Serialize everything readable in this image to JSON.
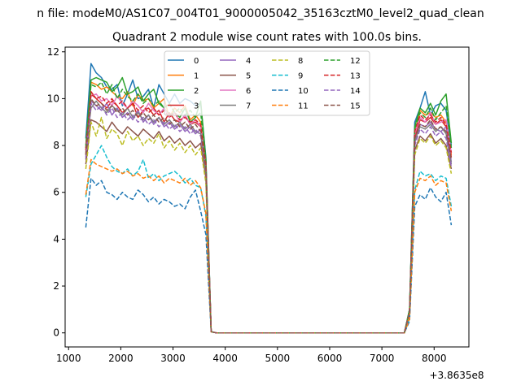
{
  "chart_data": {
    "type": "line",
    "suptitle": "n file: modeM0/AS1C07_004T01_9000005042_35163cztM0_level2_quad_clean",
    "title": "Quadrant 2 module wise count rates with 100.0s bins.",
    "xlabel": "",
    "ylabel": "",
    "x_offset_label": "+3.8635e8",
    "xlim": [
      934,
      8666
    ],
    "ylim": [
      -0.6,
      12.2
    ],
    "xticks": [
      1000,
      2000,
      3000,
      4000,
      5000,
      6000,
      7000,
      8000
    ],
    "xtick_labels": [
      "1000",
      "2000",
      "3000",
      "4000",
      "5000",
      "6000",
      "7000",
      "8000"
    ],
    "yticks": [
      0,
      2,
      4,
      6,
      8,
      10,
      12
    ],
    "ytick_labels": [
      "0",
      "2",
      "4",
      "6",
      "8",
      "10",
      "12"
    ],
    "legend_position": "top-center",
    "grid": false,
    "x": [
      1330,
      1430,
      1530,
      1630,
      1730,
      1830,
      1930,
      2030,
      2130,
      2230,
      2330,
      2430,
      2530,
      2630,
      2730,
      2830,
      2930,
      3030,
      3130,
      3230,
      3330,
      3430,
      3530,
      3630,
      3730,
      3830,
      3930,
      4030,
      4130,
      4230,
      4330,
      4430,
      4530,
      4630,
      4730,
      4830,
      4930,
      5030,
      5130,
      5230,
      5330,
      5430,
      5530,
      5630,
      5730,
      5830,
      5930,
      6030,
      6130,
      6230,
      6330,
      6430,
      6530,
      6630,
      6730,
      6830,
      6930,
      7030,
      7130,
      7230,
      7330,
      7430,
      7530,
      7630,
      7730,
      7830,
      7930,
      8030,
      8130,
      8230,
      8330
    ],
    "series": [
      {
        "name": "0",
        "color": "#1f77b4",
        "dash": "solid",
        "values": [
          8.3,
          11.5,
          11.1,
          10.9,
          10.5,
          10.4,
          10.6,
          9.7,
          10.2,
          10.8,
          10.0,
          10.1,
          10.4,
          9.6,
          10.6,
          10.2,
          9.8,
          10.2,
          9.8,
          10.0,
          9.9,
          9.7,
          9.8,
          7.5,
          0.05,
          0,
          0,
          0,
          0,
          0,
          0,
          0,
          0,
          0,
          0,
          0,
          0,
          0,
          0,
          0,
          0,
          0,
          0,
          0,
          0,
          0,
          0,
          0,
          0,
          0,
          0,
          0,
          0,
          0,
          0,
          0,
          0,
          0,
          0,
          0,
          0,
          0,
          1.0,
          9.0,
          9.6,
          10.3,
          9.3,
          9.7,
          9.8,
          9.5,
          8.0
        ]
      },
      {
        "name": "1",
        "color": "#ff7f0e",
        "dash": "solid",
        "values": [
          7.8,
          10.7,
          10.6,
          10.4,
          10.5,
          10.3,
          10.1,
          10.0,
          10.3,
          9.7,
          10.2,
          9.9,
          10.0,
          9.6,
          9.8,
          10.0,
          9.2,
          9.6,
          9.4,
          9.7,
          9.1,
          9.3,
          9.0,
          7.0,
          0.05,
          0,
          0,
          0,
          0,
          0,
          0,
          0,
          0,
          0,
          0,
          0,
          0,
          0,
          0,
          0,
          0,
          0,
          0,
          0,
          0,
          0,
          0,
          0,
          0,
          0,
          0,
          0,
          0,
          0,
          0,
          0,
          0,
          0,
          0,
          0,
          0,
          0,
          0.9,
          8.4,
          9.5,
          9.3,
          9.4,
          9.2,
          9.3,
          9.0,
          7.6
        ]
      },
      {
        "name": "2",
        "color": "#2ca02c",
        "dash": "solid",
        "values": [
          8.0,
          10.8,
          10.9,
          10.8,
          10.7,
          10.3,
          10.5,
          10.9,
          10.2,
          10.3,
          10.5,
          9.9,
          10.2,
          10.4,
          9.8,
          9.6,
          9.3,
          9.4,
          9.2,
          9.6,
          9.0,
          9.2,
          9.9,
          7.4,
          0.05,
          0,
          0,
          0,
          0,
          0,
          0,
          0,
          0,
          0,
          0,
          0,
          0,
          0,
          0,
          0,
          0,
          0,
          0,
          0,
          0,
          0,
          0,
          0,
          0,
          0,
          0,
          0,
          0,
          0,
          0,
          0,
          0,
          0,
          0,
          0,
          0,
          0,
          1.0,
          8.8,
          9.6,
          9.4,
          9.8,
          9.3,
          9.9,
          10.2,
          8.1
        ]
      },
      {
        "name": "3",
        "color": "#d62728",
        "dash": "solid",
        "values": [
          7.6,
          10.3,
          10.0,
          9.8,
          9.6,
          9.9,
          9.7,
          9.4,
          9.6,
          9.8,
          9.2,
          9.5,
          9.6,
          9.3,
          9.5,
          9.0,
          9.4,
          9.1,
          9.0,
          9.3,
          8.9,
          9.0,
          8.8,
          7.1,
          0.05,
          0,
          0,
          0,
          0,
          0,
          0,
          0,
          0,
          0,
          0,
          0,
          0,
          0,
          0,
          0,
          0,
          0,
          0,
          0,
          0,
          0,
          0,
          0,
          0,
          0,
          0,
          0,
          0,
          0,
          0,
          0,
          0,
          0,
          0,
          0,
          0,
          0,
          0.9,
          8.3,
          9.1,
          9.0,
          9.2,
          8.9,
          9.1,
          8.8,
          7.5
        ]
      },
      {
        "name": "4",
        "color": "#9467bd",
        "dash": "solid",
        "values": [
          7.4,
          9.9,
          9.7,
          9.5,
          9.8,
          9.3,
          9.6,
          9.2,
          9.4,
          9.1,
          9.5,
          9.0,
          9.3,
          8.9,
          9.2,
          8.8,
          9.0,
          8.7,
          8.9,
          8.6,
          8.8,
          8.5,
          8.7,
          6.9,
          0.05,
          0,
          0,
          0,
          0,
          0,
          0,
          0,
          0,
          0,
          0,
          0,
          0,
          0,
          0,
          0,
          0,
          0,
          0,
          0,
          0,
          0,
          0,
          0,
          0,
          0,
          0,
          0,
          0,
          0,
          0,
          0,
          0,
          0,
          0,
          0,
          0,
          0,
          0.9,
          8.1,
          8.9,
          8.8,
          9.0,
          8.7,
          8.6,
          8.8,
          7.3
        ]
      },
      {
        "name": "5",
        "color": "#8c564b",
        "dash": "solid",
        "values": [
          7.2,
          9.1,
          9.0,
          8.8,
          8.6,
          9.0,
          8.7,
          8.5,
          8.8,
          8.6,
          8.4,
          8.7,
          8.5,
          8.3,
          8.6,
          8.2,
          8.4,
          8.1,
          8.3,
          8.0,
          8.2,
          7.9,
          8.1,
          6.6,
          0.05,
          0,
          0,
          0,
          0,
          0,
          0,
          0,
          0,
          0,
          0,
          0,
          0,
          0,
          0,
          0,
          0,
          0,
          0,
          0,
          0,
          0,
          0,
          0,
          0,
          0,
          0,
          0,
          0,
          0,
          0,
          0,
          0,
          0,
          0,
          0,
          0,
          0,
          0.8,
          7.8,
          8.4,
          8.2,
          8.5,
          8.1,
          8.3,
          8.0,
          7.0
        ]
      },
      {
        "name": "6",
        "color": "#e377c2",
        "dash": "solid",
        "values": [
          7.9,
          10.1,
          10.2,
          9.9,
          10.0,
          9.7,
          10.1,
          9.8,
          9.6,
          9.9,
          9.7,
          9.4,
          9.8,
          9.5,
          9.3,
          9.6,
          9.2,
          9.4,
          9.0,
          9.3,
          8.9,
          9.1,
          8.8,
          7.2,
          0.05,
          0,
          0,
          0,
          0,
          0,
          0,
          0,
          0,
          0,
          0,
          0,
          0,
          0,
          0,
          0,
          0,
          0,
          0,
          0,
          0,
          0,
          0,
          0,
          0,
          0,
          0,
          0,
          0,
          0,
          0,
          0,
          0,
          0,
          0,
          0,
          0,
          0,
          0.9,
          8.5,
          9.2,
          9.0,
          9.4,
          8.9,
          9.0,
          9.1,
          7.7
        ]
      },
      {
        "name": "7",
        "color": "#7f7f7f",
        "dash": "solid",
        "values": [
          7.7,
          9.6,
          9.9,
          9.6,
          9.4,
          9.7,
          9.5,
          9.3,
          9.6,
          9.2,
          9.4,
          9.1,
          9.3,
          9.0,
          9.2,
          8.9,
          9.1,
          8.8,
          9.0,
          8.7,
          8.9,
          8.6,
          8.5,
          6.8,
          0.05,
          0,
          0,
          0,
          0,
          0,
          0,
          0,
          0,
          0,
          0,
          0,
          0,
          0,
          0,
          0,
          0,
          0,
          0,
          0,
          0,
          0,
          0,
          0,
          0,
          0,
          0,
          0,
          0,
          0,
          0,
          0,
          0,
          0,
          0,
          0,
          0,
          0,
          0.9,
          8.2,
          8.8,
          8.7,
          8.9,
          8.6,
          8.8,
          8.5,
          7.2
        ]
      },
      {
        "name": "8",
        "color": "#bcbd22",
        "dash": "dashed",
        "values": [
          7.0,
          9.0,
          8.4,
          9.2,
          8.3,
          8.7,
          8.5,
          8.0,
          8.6,
          8.2,
          8.4,
          8.0,
          8.3,
          8.1,
          8.5,
          7.9,
          8.2,
          7.8,
          8.1,
          7.7,
          8.0,
          7.6,
          7.9,
          6.4,
          0.05,
          0,
          0,
          0,
          0,
          0,
          0,
          0,
          0,
          0,
          0,
          0,
          0,
          0,
          0,
          0,
          0,
          0,
          0,
          0,
          0,
          0,
          0,
          0,
          0,
          0,
          0,
          0,
          0,
          0,
          0,
          0,
          0,
          0,
          0,
          0,
          0,
          0,
          0.8,
          7.6,
          8.3,
          8.1,
          8.4,
          8.0,
          8.2,
          7.9,
          6.8
        ]
      },
      {
        "name": "9",
        "color": "#17becf",
        "dash": "dashed",
        "values": [
          5.8,
          7.2,
          7.6,
          8.0,
          7.5,
          7.1,
          6.9,
          6.8,
          7.0,
          6.7,
          6.9,
          7.4,
          6.6,
          6.8,
          6.5,
          6.7,
          6.8,
          6.9,
          6.7,
          6.4,
          6.6,
          6.3,
          6.2,
          5.0,
          0.05,
          0,
          0,
          0,
          0,
          0,
          0,
          0,
          0,
          0,
          0,
          0,
          0,
          0,
          0,
          0,
          0,
          0,
          0,
          0,
          0,
          0,
          0,
          0,
          0,
          0,
          0,
          0,
          0,
          0,
          0,
          0,
          0,
          0,
          0,
          0,
          0,
          0,
          0.6,
          6.1,
          6.9,
          6.7,
          6.8,
          6.5,
          6.7,
          6.6,
          5.4
        ]
      },
      {
        "name": "10",
        "color": "#1f77b4",
        "dash": "dashed",
        "values": [
          4.5,
          6.6,
          6.3,
          6.5,
          6.0,
          5.9,
          5.7,
          6.0,
          5.8,
          5.7,
          6.1,
          5.9,
          5.6,
          5.8,
          5.5,
          5.7,
          5.6,
          5.4,
          5.5,
          5.3,
          5.8,
          6.1,
          5.2,
          4.2,
          0.05,
          0,
          0,
          0,
          0,
          0,
          0,
          0,
          0,
          0,
          0,
          0,
          0,
          0,
          0,
          0,
          0,
          0,
          0,
          0,
          0,
          0,
          0,
          0,
          0,
          0,
          0,
          0,
          0,
          0,
          0,
          0,
          0,
          0,
          0,
          0,
          0,
          0,
          0.5,
          5.4,
          5.9,
          5.7,
          6.2,
          5.8,
          5.6,
          6.0,
          4.6
        ]
      },
      {
        "name": "11",
        "color": "#ff7f0e",
        "dash": "dashed",
        "values": [
          5.9,
          7.4,
          7.2,
          7.1,
          7.0,
          6.9,
          7.0,
          6.8,
          6.9,
          6.7,
          6.8,
          6.6,
          6.7,
          6.5,
          6.7,
          6.4,
          6.6,
          6.5,
          6.4,
          6.6,
          6.3,
          6.5,
          6.2,
          5.1,
          0.05,
          0,
          0,
          0,
          0,
          0,
          0,
          0,
          0,
          0,
          0,
          0,
          0,
          0,
          0,
          0,
          0,
          0,
          0,
          0,
          0,
          0,
          0,
          0,
          0,
          0,
          0,
          0,
          0,
          0,
          0,
          0,
          0,
          0,
          0,
          0,
          0,
          0,
          0.6,
          6.0,
          6.6,
          6.5,
          6.7,
          6.3,
          6.5,
          6.4,
          5.2
        ]
      },
      {
        "name": "12",
        "color": "#2ca02c",
        "dash": "dashed",
        "values": [
          7.9,
          10.6,
          10.5,
          10.7,
          10.2,
          10.6,
          10.0,
          10.4,
          10.1,
          9.9,
          10.2,
          9.8,
          10.0,
          9.7,
          9.9,
          9.6,
          9.8,
          9.4,
          9.6,
          9.3,
          9.5,
          9.2,
          9.4,
          7.3,
          0.05,
          0,
          0,
          0,
          0,
          0,
          0,
          0,
          0,
          0,
          0,
          0,
          0,
          0,
          0,
          0,
          0,
          0,
          0,
          0,
          0,
          0,
          0,
          0,
          0,
          0,
          0,
          0,
          0,
          0,
          0,
          0,
          0,
          0,
          0,
          0,
          0,
          0,
          1.0,
          8.7,
          9.4,
          9.2,
          9.6,
          9.1,
          9.4,
          9.7,
          7.9
        ]
      },
      {
        "name": "13",
        "color": "#d62728",
        "dash": "dashed",
        "values": [
          7.8,
          10.2,
          10.0,
          10.1,
          9.8,
          10.0,
          9.7,
          9.9,
          9.6,
          9.8,
          9.5,
          9.7,
          9.4,
          9.6,
          9.3,
          9.5,
          9.2,
          9.4,
          9.1,
          9.2,
          9.0,
          9.1,
          8.9,
          7.2,
          0.05,
          0,
          0,
          0,
          0,
          0,
          0,
          0,
          0,
          0,
          0,
          0,
          0,
          0,
          0,
          0,
          0,
          0,
          0,
          0,
          0,
          0,
          0,
          0,
          0,
          0,
          0,
          0,
          0,
          0,
          0,
          0,
          0,
          0,
          0,
          0,
          0,
          0,
          0.9,
          8.6,
          9.3,
          9.1,
          9.3,
          9.0,
          9.2,
          8.9,
          7.7
        ]
      },
      {
        "name": "14",
        "color": "#9467bd",
        "dash": "dashed",
        "values": [
          7.5,
          9.8,
          9.5,
          9.7,
          9.3,
          9.6,
          9.2,
          9.4,
          9.1,
          9.3,
          9.0,
          9.2,
          8.9,
          9.1,
          8.8,
          9.0,
          8.7,
          8.9,
          8.6,
          8.8,
          8.5,
          8.7,
          8.4,
          6.9,
          0.05,
          0,
          0,
          0,
          0,
          0,
          0,
          0,
          0,
          0,
          0,
          0,
          0,
          0,
          0,
          0,
          0,
          0,
          0,
          0,
          0,
          0,
          0,
          0,
          0,
          0,
          0,
          0,
          0,
          0,
          0,
          0,
          0,
          0,
          0,
          0,
          0,
          0,
          0.9,
          8.0,
          8.7,
          8.5,
          8.8,
          8.4,
          8.6,
          8.3,
          7.1
        ]
      },
      {
        "name": "15",
        "color": "#8c564b",
        "dash": "dashed",
        "values": [
          7.6,
          10.0,
          9.7,
          9.8,
          9.5,
          9.7,
          9.4,
          9.6,
          9.3,
          9.5,
          9.2,
          9.4,
          9.1,
          9.3,
          9.0,
          9.2,
          8.9,
          9.1,
          8.8,
          9.0,
          8.7,
          8.9,
          8.6,
          7.0,
          0.05,
          0,
          0,
          0,
          0,
          0,
          0,
          0,
          0,
          0,
          0,
          0,
          0,
          0,
          0,
          0,
          0,
          0,
          0,
          0,
          0,
          0,
          0,
          0,
          0,
          0,
          0,
          0,
          0,
          0,
          0,
          0,
          0,
          0,
          0,
          0,
          0,
          0,
          0.9,
          8.3,
          8.9,
          8.8,
          9.1,
          8.7,
          8.8,
          8.6,
          7.4
        ]
      }
    ]
  }
}
